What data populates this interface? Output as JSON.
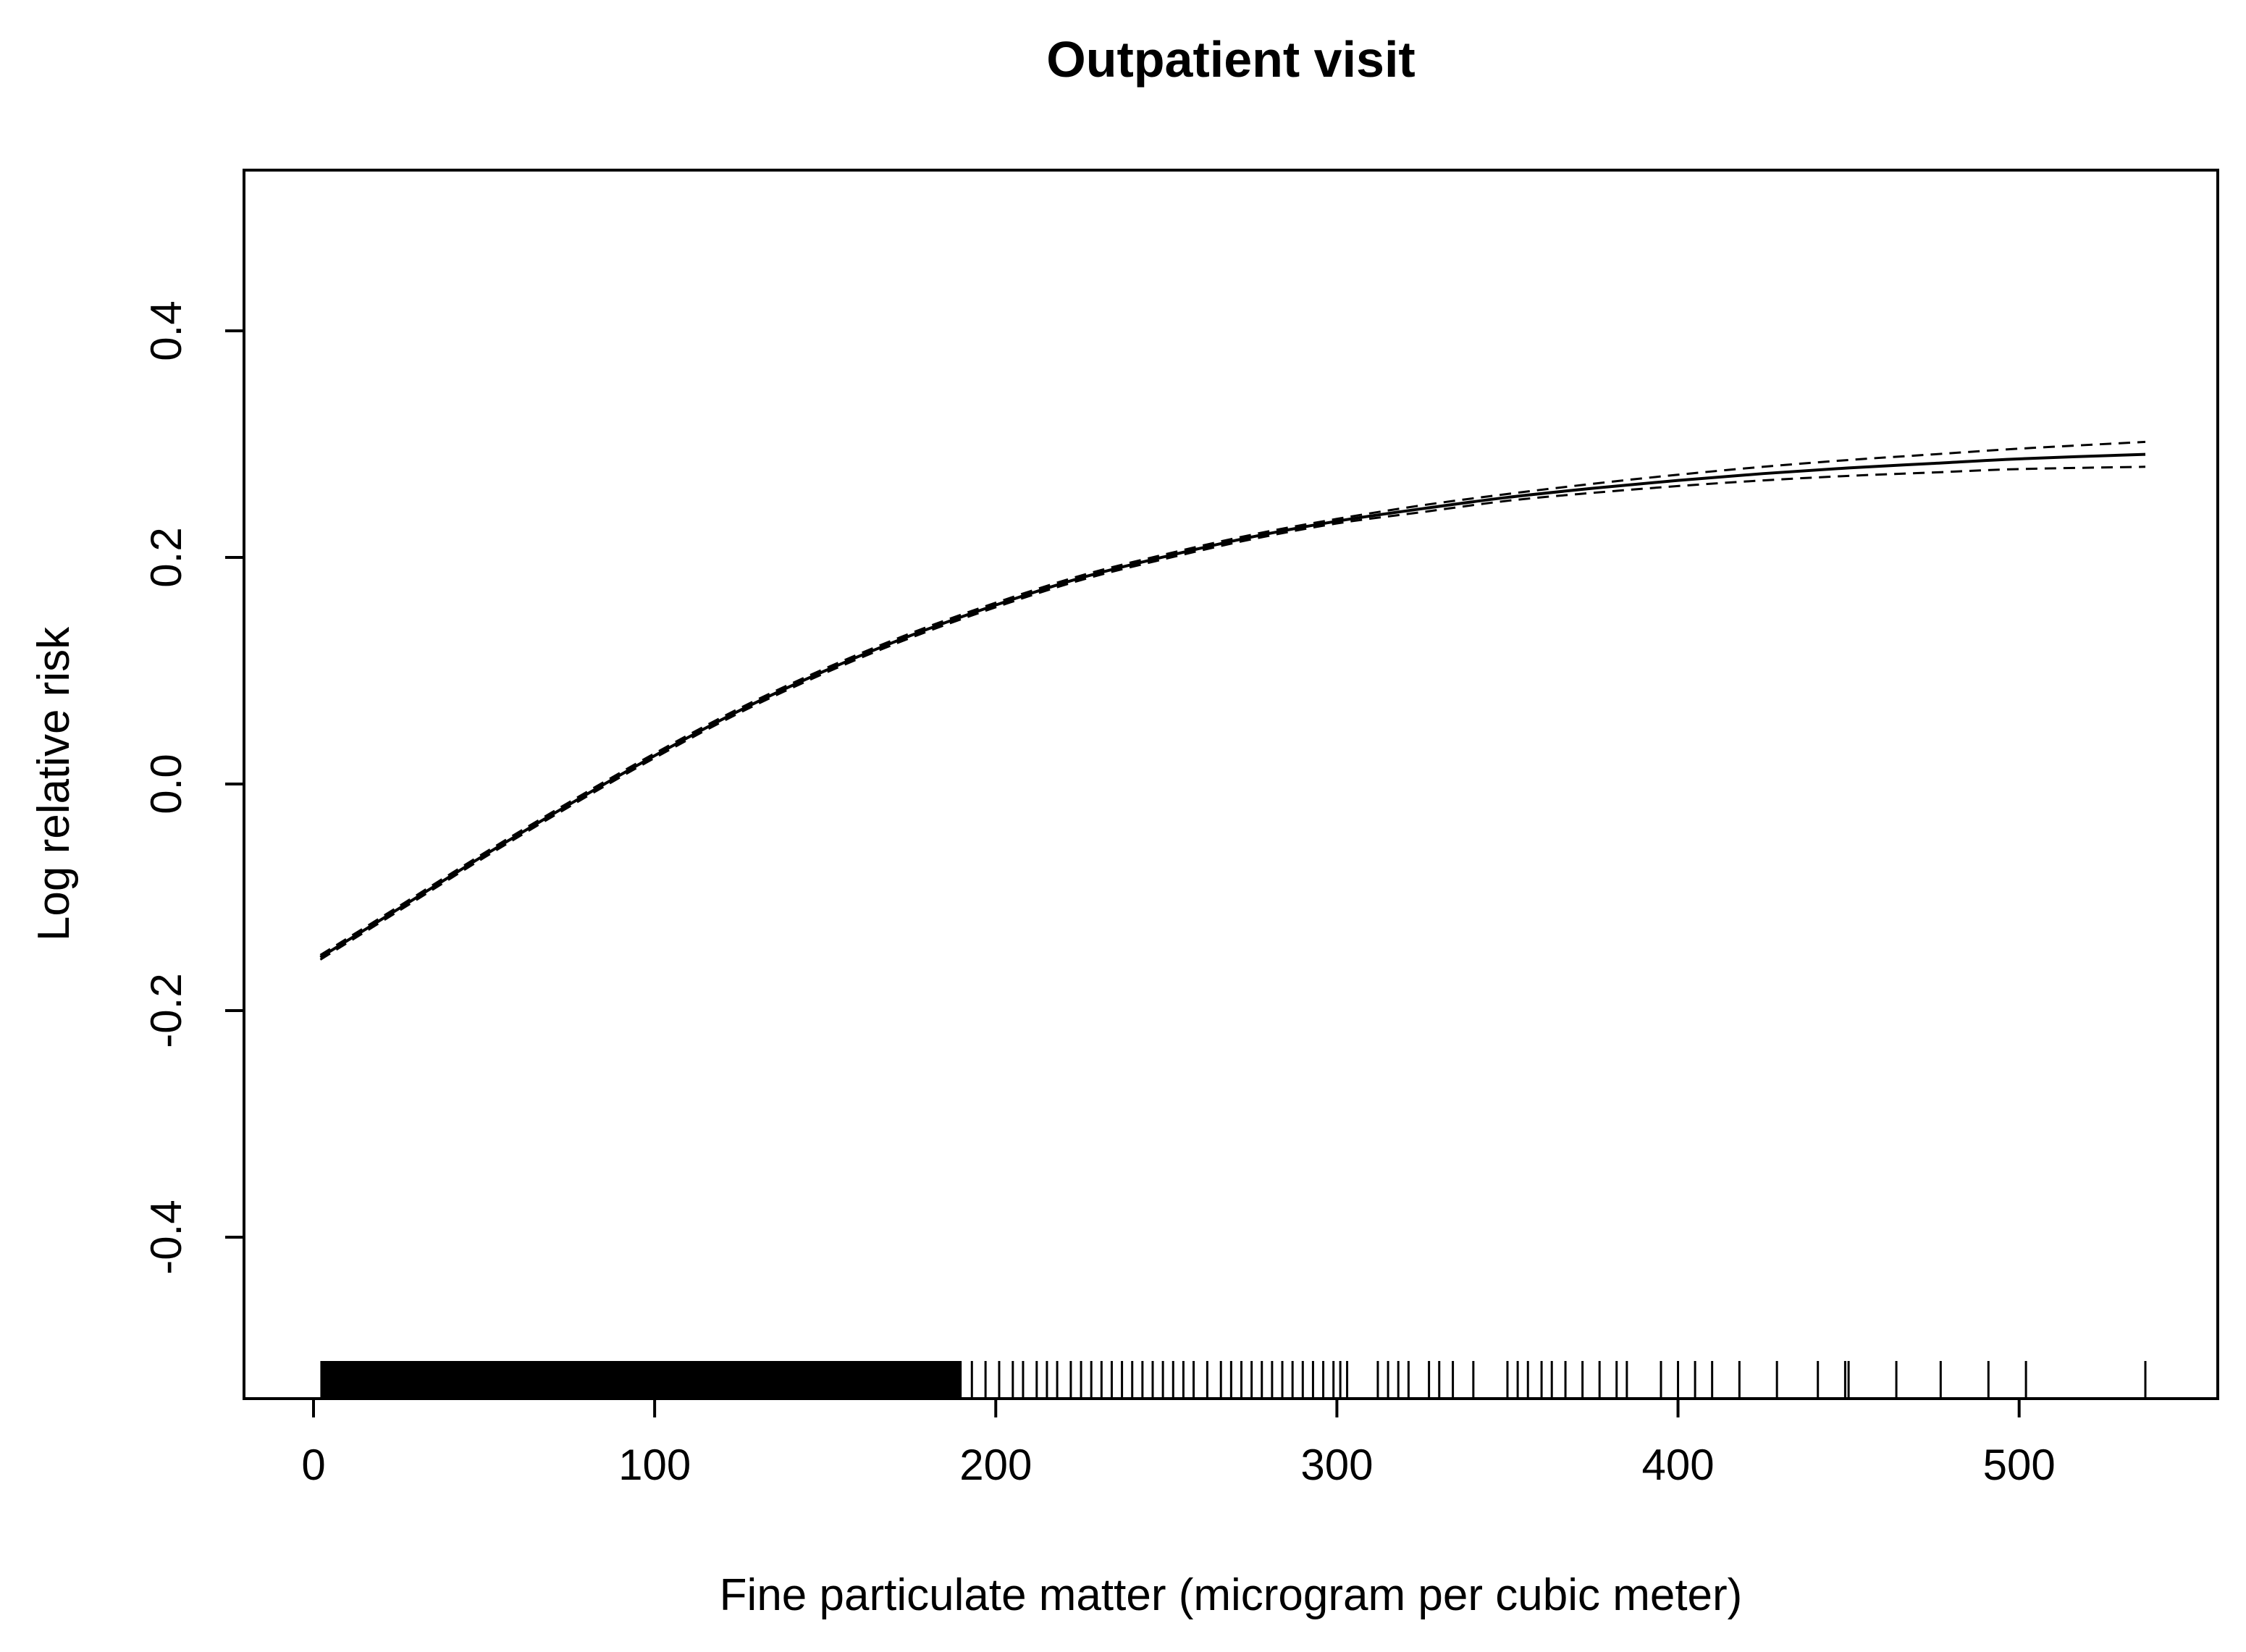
{
  "chart_data": {
    "type": "line",
    "title": "Outpatient visit",
    "xlabel": "Fine particulate matter (microgram per cubic meter)",
    "ylabel": "Log relative risk",
    "xlim": [
      -20,
      560
    ],
    "ylim": [
      -0.54,
      0.54
    ],
    "x_ticks": [
      0,
      100,
      200,
      300,
      400,
      500
    ],
    "x_tick_labels": [
      "0",
      "100",
      "200",
      "300",
      "400",
      "500"
    ],
    "y_ticks": [
      -0.4,
      -0.2,
      0.0,
      0.2,
      0.4
    ],
    "y_tick_labels": [
      "-0.4",
      "-0.2",
      "0.0",
      "0.2",
      "0.4"
    ],
    "grid": false,
    "legend": "none",
    "series": [
      {
        "role": "estimate",
        "style": "solid",
        "x": [
          2,
          25,
          50,
          75,
          100,
          125,
          150,
          175,
          200,
          225,
          250,
          275,
          300,
          325,
          350,
          375,
          400,
          425,
          450,
          475,
          500,
          537
        ],
        "y": [
          -0.153,
          -0.11,
          -0.063,
          -0.018,
          0.025,
          0.065,
          0.1,
          0.131,
          0.158,
          0.182,
          0.201,
          0.218,
          0.232,
          0.243,
          0.253,
          0.261,
          0.268,
          0.274,
          0.279,
          0.283,
          0.287,
          0.291
        ]
      },
      {
        "role": "upper-ci",
        "style": "dashed",
        "x": [
          2,
          25,
          50,
          75,
          100,
          125,
          150,
          175,
          200,
          225,
          250,
          275,
          300,
          325,
          350,
          375,
          400,
          425,
          450,
          475,
          500,
          537
        ],
        "y": [
          -0.151,
          -0.108,
          -0.061,
          -0.016,
          0.027,
          0.067,
          0.102,
          0.133,
          0.16,
          0.184,
          0.203,
          0.22,
          0.234,
          0.246,
          0.256,
          0.265,
          0.273,
          0.28,
          0.286,
          0.291,
          0.296,
          0.302
        ]
      },
      {
        "role": "lower-ci",
        "style": "dashed",
        "x": [
          2,
          25,
          50,
          75,
          100,
          125,
          150,
          175,
          200,
          225,
          250,
          275,
          300,
          325,
          350,
          375,
          400,
          425,
          450,
          475,
          500,
          537
        ],
        "y": [
          -0.155,
          -0.112,
          -0.065,
          -0.02,
          0.023,
          0.063,
          0.098,
          0.129,
          0.156,
          0.18,
          0.199,
          0.216,
          0.23,
          0.24,
          0.25,
          0.257,
          0.263,
          0.268,
          0.272,
          0.275,
          0.278,
          0.28
        ]
      }
    ],
    "rug": {
      "dense_range": [
        2,
        190
      ],
      "x": [
        193,
        197,
        201,
        205,
        208,
        212,
        215,
        218,
        222,
        225,
        228,
        231,
        234,
        237,
        240,
        243,
        246,
        249,
        252,
        255,
        258,
        262,
        266,
        269,
        272,
        275,
        278,
        281,
        284,
        287,
        290,
        293,
        296,
        299,
        301,
        303,
        312,
        315,
        318,
        321,
        327,
        330,
        334,
        340,
        350,
        353,
        356,
        360,
        363,
        367,
        372,
        377,
        382,
        385,
        395,
        400,
        405,
        410,
        418,
        429,
        441,
        449,
        450,
        464,
        477,
        491,
        502,
        537
      ]
    }
  }
}
